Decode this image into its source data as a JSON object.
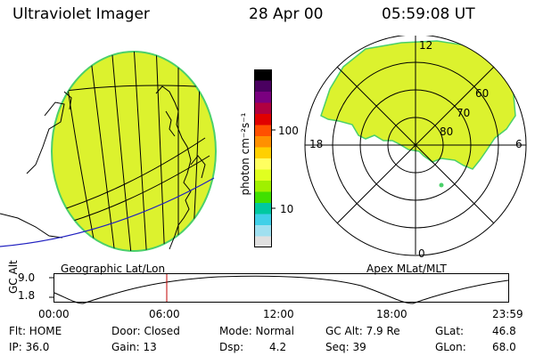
{
  "header": {
    "instrument": "Ultraviolet Imager",
    "date": "28 Apr 00",
    "time": "05:59:08 UT"
  },
  "colorbar": {
    "unit_label": "photon cm⁻²s⁻¹",
    "ticks": [
      "100",
      "10"
    ],
    "colors": [
      "#000000",
      "#4a0060",
      "#7a0080",
      "#b00040",
      "#e00000",
      "#ff5000",
      "#ff9000",
      "#ffd000",
      "#ffff60",
      "#e0ff20",
      "#a0f000",
      "#40e000",
      "#00c8a0",
      "#40d0e8",
      "#a0e0f0",
      "#e0e0e0"
    ]
  },
  "geo": {
    "label": "Geographic Lat/Lon",
    "fill_color": "#dcf22e",
    "edge_color": "#4ad06a"
  },
  "polar": {
    "label": "Apex MLat/MLT",
    "mlt_labels": [
      "12",
      "18",
      "6",
      "0"
    ],
    "mlat_labels": [
      "60",
      "70",
      "80"
    ],
    "fill_color": "#dcf22e",
    "edge_color": "#4ad06a"
  },
  "alt_plot": {
    "axis_label": "GC Alt",
    "y_ticks": [
      "9.0",
      "1.8"
    ],
    "x_ticks": [
      "00:00",
      "06:00",
      "12:00",
      "18:00",
      "23:59"
    ],
    "cursor_color": "#c00000"
  },
  "info": {
    "flt": "Flt: HOME",
    "ip": "IP: 36.0",
    "door": "Door: Closed",
    "gain": "Gain: 13",
    "mode": "Mode: Normal",
    "dsp_label": "Dsp:",
    "dsp_value": "4.2",
    "gcalt": "GC Alt: 7.9 Re",
    "seq": "Seq: 39",
    "glat_label": "GLat:",
    "glat_value": "46.8",
    "glon_label": "GLon:",
    "glon_value": "68.0"
  }
}
